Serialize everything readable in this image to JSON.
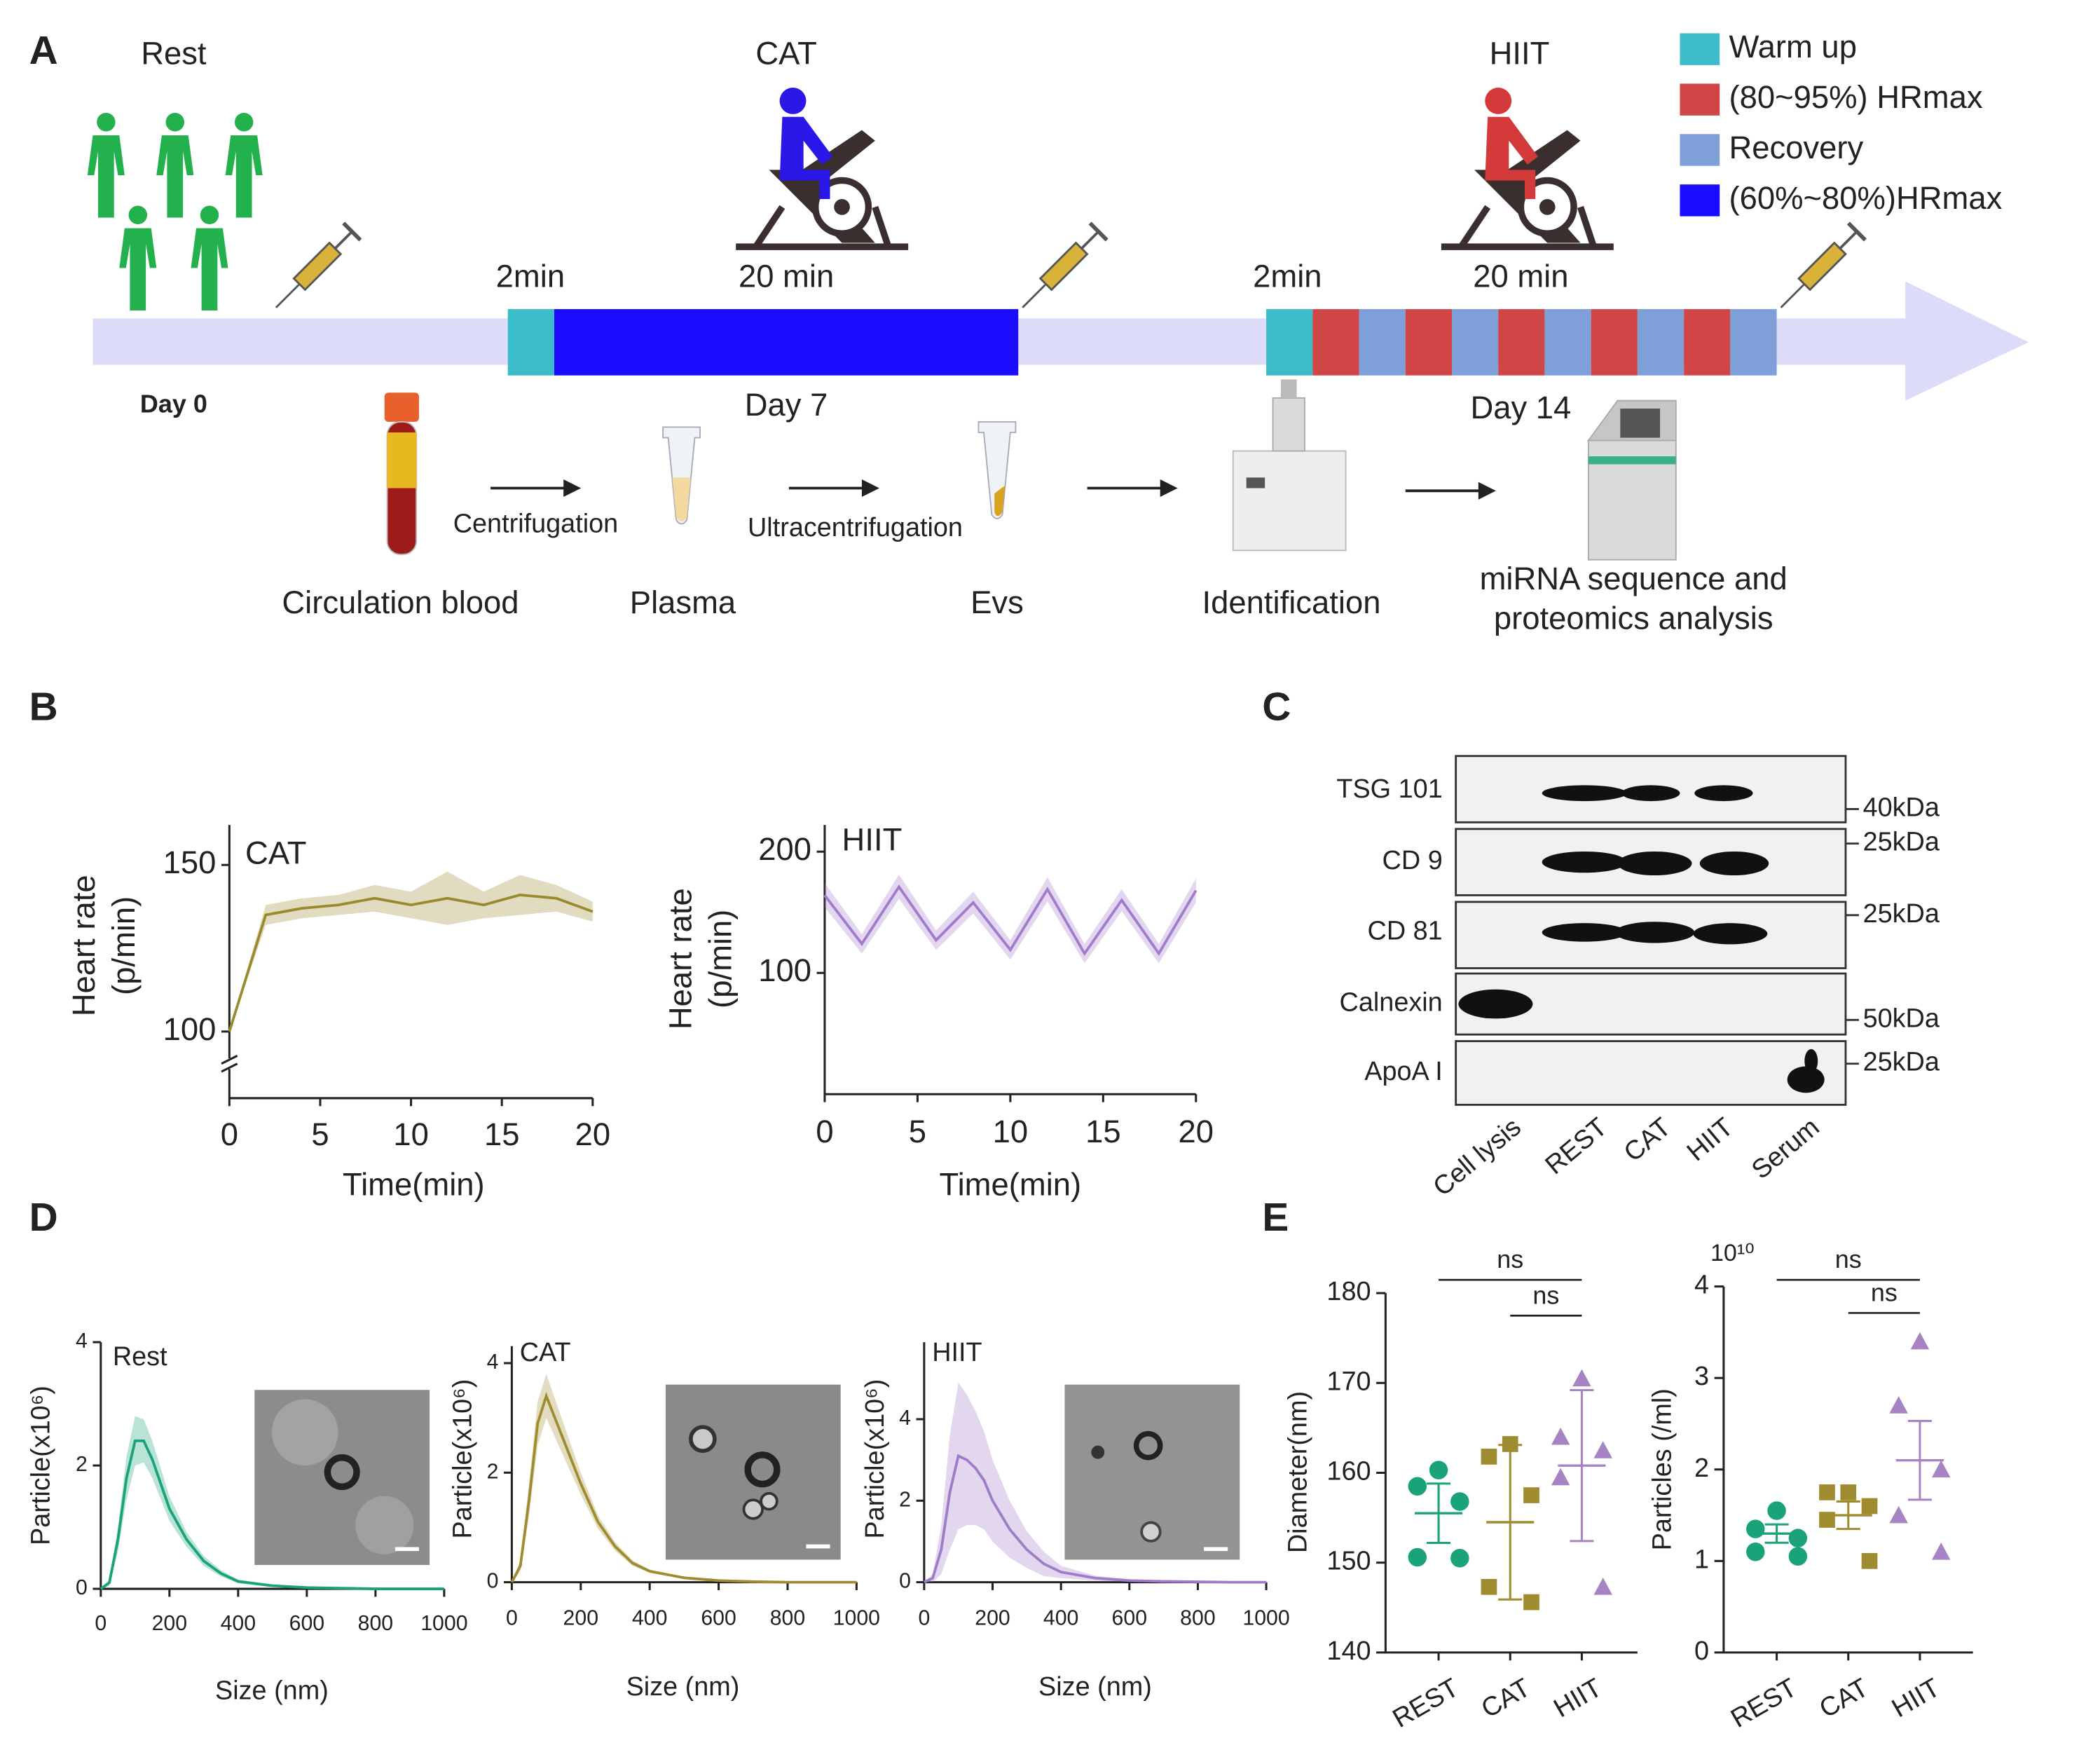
{
  "panel_labels": [
    "A",
    "B",
    "C",
    "D",
    "E"
  ],
  "schematic": {
    "groups": [
      "Rest",
      "CAT",
      "HIIT"
    ],
    "legend": [
      {
        "label": "Warm up",
        "color": "#3bbcc8"
      },
      {
        "label": "(80~95%) HRmax",
        "color": "#d04545"
      },
      {
        "label": "Recovery",
        "color": "#7f9fd8"
      },
      {
        "label": "(60%~80%)HRmax",
        "color": "#1a0dff"
      }
    ],
    "durations": [
      "2min",
      "20 min",
      "2min",
      "20 min"
    ],
    "days": [
      "Day 0",
      "Day 7",
      "Day 14"
    ],
    "steps": [
      "Centrifugation",
      "Ultracentrifugation"
    ],
    "samples": [
      "Circulation blood",
      "Plasma",
      "Evs",
      "Identification",
      "miRNA sequence and",
      "proteomics analysis"
    ]
  },
  "western_blot": {
    "rows": [
      "TSG 101",
      "CD 9",
      "CD 81",
      "Calnexin",
      "ApoA I"
    ],
    "markers": [
      "40kDa",
      "25kDa",
      "25kDa",
      "50kDa",
      "25kDa"
    ],
    "columns": [
      "Cell lysis",
      "REST",
      "CAT",
      "HIIT",
      "Serum"
    ]
  },
  "chart_data": [
    {
      "type": "line",
      "title": "CAT",
      "y_label": [
        "Heart rate",
        "(p/min)"
      ],
      "x_label": "Time(min)",
      "x": [
        0,
        2,
        4,
        6,
        8,
        10,
        12,
        14,
        16,
        18,
        20
      ],
      "values": [
        100,
        135,
        137,
        138,
        140,
        138,
        140,
        138,
        141,
        140,
        136
      ],
      "errors": [
        0,
        3,
        3,
        3,
        4,
        4,
        8,
        4,
        6,
        4,
        3
      ],
      "color": "#9a8a2e",
      "xlim": [
        0,
        20
      ],
      "xticks": [
        0,
        5,
        10,
        15,
        20
      ],
      "ylim": [
        80,
        162
      ],
      "yticks": [
        100,
        150
      ]
    },
    {
      "type": "line",
      "title": "HIIT",
      "y_label": [
        "Heart rate",
        "(p/min)"
      ],
      "x_label": "Time(min)",
      "x": [
        0,
        2,
        4,
        6,
        8,
        10,
        12,
        14,
        16,
        18,
        20
      ],
      "values": [
        164,
        124,
        171,
        127,
        158,
        119,
        169,
        116,
        160,
        116,
        168
      ],
      "errors": [
        10,
        8,
        10,
        8,
        9,
        8,
        10,
        8,
        9,
        8,
        10
      ],
      "color": "#a27ccc",
      "xlim": [
        0,
        20
      ],
      "xticks": [
        0,
        5,
        10,
        15,
        20
      ],
      "ylim": [
        0,
        222
      ],
      "yticks": [
        100,
        200
      ]
    },
    {
      "type": "line",
      "title": "Rest",
      "y_label": [
        "Particle(x10⁶)"
      ],
      "x_label": "Size (nm)",
      "x": [
        0,
        25,
        50,
        75,
        100,
        125,
        150,
        175,
        200,
        250,
        300,
        350,
        400,
        500,
        600,
        700,
        800,
        900,
        1000
      ],
      "values": [
        0,
        0.1,
        0.8,
        1.8,
        2.4,
        2.4,
        2.1,
        1.7,
        1.3,
        0.8,
        0.45,
        0.25,
        0.12,
        0.05,
        0.02,
        0.01,
        0,
        0,
        0
      ],
      "errors": [
        0,
        0.05,
        0.2,
        0.35,
        0.4,
        0.35,
        0.3,
        0.25,
        0.2,
        0.12,
        0.08,
        0.05,
        0.03,
        0.02,
        0.01,
        0,
        0,
        0,
        0
      ],
      "color": "#1aa37a",
      "xlim": [
        0,
        1000
      ],
      "xticks": [
        0,
        200,
        400,
        600,
        800,
        1000
      ],
      "ylim": [
        0,
        4
      ],
      "yticks": [
        0,
        2,
        4
      ]
    },
    {
      "type": "line",
      "title": "CAT",
      "y_label": [
        "Particle(x10⁶)"
      ],
      "x_label": "Size (nm)",
      "x": [
        0,
        25,
        50,
        75,
        100,
        125,
        150,
        175,
        200,
        250,
        300,
        350,
        400,
        500,
        600,
        700,
        800,
        900,
        1000
      ],
      "values": [
        0,
        0.3,
        1.5,
        2.9,
        3.4,
        3.0,
        2.6,
        2.2,
        1.8,
        1.1,
        0.65,
        0.35,
        0.2,
        0.08,
        0.03,
        0.01,
        0,
        0,
        0
      ],
      "errors": [
        0,
        0.1,
        0.3,
        0.4,
        0.4,
        0.35,
        0.3,
        0.25,
        0.2,
        0.12,
        0.08,
        0.05,
        0.03,
        0.02,
        0.01,
        0,
        0,
        0,
        0
      ],
      "color": "#a08c30",
      "xlim": [
        0,
        1000
      ],
      "xticks": [
        0,
        200,
        400,
        600,
        800,
        1000
      ],
      "ylim": [
        0,
        4.31
      ],
      "yticks": [
        0,
        2,
        4
      ]
    },
    {
      "type": "line",
      "title": "HIIT",
      "y_label": [
        "Particle(x10⁶)"
      ],
      "x_label": "Size (nm)",
      "x": [
        0,
        25,
        50,
        75,
        100,
        125,
        150,
        175,
        200,
        250,
        300,
        350,
        400,
        500,
        600,
        700,
        800,
        900,
        1000
      ],
      "values": [
        0,
        0.1,
        0.8,
        2.2,
        3.1,
        3.0,
        2.8,
        2.5,
        2.0,
        1.3,
        0.8,
        0.45,
        0.25,
        0.1,
        0.04,
        0.02,
        0.01,
        0,
        0
      ],
      "errors": [
        0,
        0.1,
        0.6,
        1.4,
        1.8,
        1.6,
        1.4,
        1.2,
        1.0,
        0.7,
        0.45,
        0.3,
        0.15,
        0.06,
        0.03,
        0.01,
        0.01,
        0,
        0
      ],
      "color": "#a07cc8",
      "xlim": [
        0,
        1000
      ],
      "xticks": [
        0,
        200,
        400,
        600,
        800,
        1000
      ],
      "ylim": [
        0,
        5.89
      ],
      "yticks": [
        0,
        2,
        4
      ]
    },
    {
      "type": "dot",
      "y_label": "Diameter(nm)",
      "categories": [
        "REST",
        "CAT",
        "HIIT"
      ],
      "points": [
        [
          160.3,
          158.5,
          156.8,
          150.6,
          150.5
        ],
        [
          163.2,
          161.8,
          157.5,
          147.3,
          145.6
        ],
        [
          170.5,
          164,
          162.5,
          159.5,
          147.3
        ]
      ],
      "means": [
        155.5,
        154.5,
        160.8
      ],
      "errors": [
        3.3,
        8.6,
        8.4
      ],
      "colors": [
        "#1aa37a",
        "#a08c30",
        "#a684c4"
      ],
      "markers": [
        "circle",
        "square",
        "triangle"
      ],
      "ylim": [
        140,
        180
      ],
      "yticks": [
        140,
        150,
        160,
        170,
        180
      ],
      "annotations": [
        "ns",
        "ns"
      ]
    },
    {
      "type": "dot",
      "y_label": "Particles (/ml)",
      "y_multiplier": "10¹⁰",
      "categories": [
        "REST",
        "CAT",
        "HIIT"
      ],
      "points": [
        [
          1.55,
          1.35,
          1.25,
          1.1,
          1.05
        ],
        [
          1.75,
          1.75,
          1.6,
          1.45,
          1.0
        ],
        [
          3.4,
          2.7,
          2.0,
          1.5,
          1.1
        ]
      ],
      "means": [
        1.3,
        1.5,
        2.1
      ],
      "errors": [
        0.1,
        0.15,
        0.43
      ],
      "colors": [
        "#1aa37a",
        "#a08c30",
        "#a684c4"
      ],
      "markers": [
        "circle",
        "square",
        "triangle"
      ],
      "ylim": [
        0,
        4
      ],
      "yticks": [
        0,
        1,
        2,
        3,
        4
      ],
      "annotations": [
        "ns",
        "ns"
      ]
    }
  ]
}
